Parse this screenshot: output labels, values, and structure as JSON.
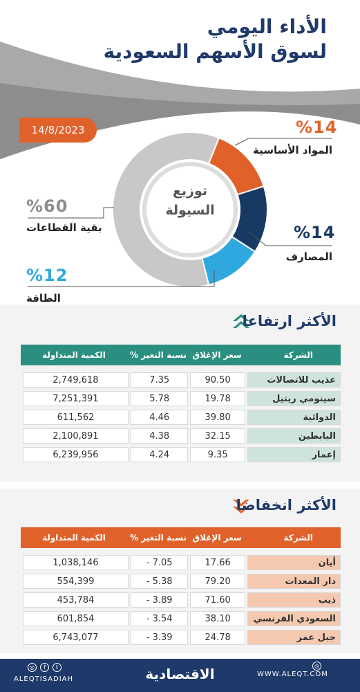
{
  "header": {
    "title_line1": "الأداء اليومي",
    "title_line2": "لسوق الأسهم السعودية",
    "date": "14/8/2023"
  },
  "colors": {
    "navy": "#1f3a6a",
    "orange": "#e0622a",
    "dark_blue": "#173a62",
    "light_blue": "#2fa8e0",
    "gray": "#c8c8c8",
    "teal": "#2a8f80",
    "peach": "#f5c9b0"
  },
  "chart_data": {
    "type": "pie",
    "title": "توزيع السيولة",
    "slices": [
      {
        "label": "المواد الأساسية",
        "percent_label": "%14",
        "value": 14,
        "color": "#e0622a"
      },
      {
        "label": "المصارف",
        "percent_label": "%14",
        "value": 14,
        "color": "#173a62"
      },
      {
        "label": "الطاقة",
        "percent_label": "%12",
        "value": 12,
        "color": "#2fa8e0"
      },
      {
        "label": "بقية القطاعات",
        "percent_label": "%60",
        "value": 60,
        "color": "#c8c8c8"
      }
    ]
  },
  "gainers": {
    "title": "الأكثر ارتفاعا",
    "headers": {
      "company": "الشركة",
      "close": "سعر الإغلاق",
      "change": "نسبة التغير %",
      "volume": "الكمية المتداولة"
    },
    "rows": [
      {
        "company": "عذيب للاتصالات",
        "close": "90.50",
        "change": "7.35",
        "volume": "2,749,618"
      },
      {
        "company": "سينومي ريتيل",
        "close": "19.78",
        "change": "5.78",
        "volume": "7,251,391"
      },
      {
        "company": "الدوائية",
        "close": "39.80",
        "change": "4.46",
        "volume": "611,562"
      },
      {
        "company": "البابطين",
        "close": "32.15",
        "change": "4.38",
        "volume": "2,100,891"
      },
      {
        "company": "إعمار",
        "close": "9.35",
        "change": "4.24",
        "volume": "6,239,956"
      }
    ]
  },
  "losers": {
    "title": "الأكثر انخفاضا",
    "headers": {
      "company": "الشركة",
      "close": "سعر الإغلاق",
      "change": "نسبة التغير %",
      "volume": "الكمية المتداولة"
    },
    "rows": [
      {
        "company": "أيان",
        "close": "17.66",
        "change": "7.05 -",
        "volume": "1,038,146"
      },
      {
        "company": "دار المعدات",
        "close": "79.20",
        "change": "5.38 -",
        "volume": "554,399"
      },
      {
        "company": "ذيب",
        "close": "71.60",
        "change": "3.89 -",
        "volume": "453,784"
      },
      {
        "company": "السعودي الفرنسي",
        "close": "38.10",
        "change": "3.54 -",
        "volume": "601,854"
      },
      {
        "company": "جبل عمر",
        "close": "24.78",
        "change": "3.39 -",
        "volume": "6,743,077"
      }
    ]
  },
  "footer": {
    "brand": "الاقتصادية",
    "site": "WWW.ALEQT.COM",
    "handle": "ALEQTISADIAH"
  }
}
